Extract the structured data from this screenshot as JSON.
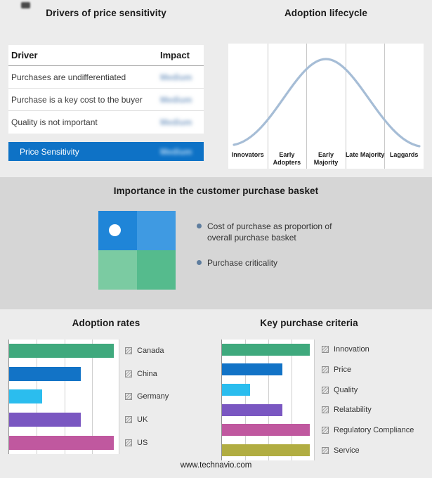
{
  "meta": {
    "footer": "www.technavio.com"
  },
  "drivers": {
    "title": "Drivers of price sensitivity",
    "col_driver": "Driver",
    "col_impact": "Impact",
    "rows": [
      {
        "driver": "Purchases are undifferentiated",
        "impact": "Medium"
      },
      {
        "driver": "Purchase is a key cost to the buyer",
        "impact": "Medium"
      },
      {
        "driver": "Quality is not important",
        "impact": "Medium"
      }
    ],
    "highlight": {
      "label": "Price Sensitivity",
      "impact": "Medium"
    },
    "highlight_color": "#0e72c6"
  },
  "basket": {
    "title": "Importance in the customer purchase basket",
    "bullets": [
      "Cost of purchase as proportion of overall purchase basket",
      "Purchase criticality"
    ],
    "quad_colors": {
      "top_left": "#1f85d8",
      "top_right": "#3f9ae2",
      "bottom_left": "#7bcba2",
      "bottom_right": "#55bb8d"
    }
  },
  "chart_data": [
    {
      "id": "adoption_lifecycle",
      "type": "line",
      "title": "Adoption lifecycle",
      "shape": "bell-curve",
      "categories": [
        "Innovators",
        "Early Adopters",
        "Early Majority",
        "Late Majority",
        "Laggards"
      ],
      "curve_color": "#a6bdd6",
      "grid": "vertical-separators"
    },
    {
      "id": "adoption_rates",
      "type": "bar",
      "orientation": "horizontal",
      "title": "Adoption rates",
      "categories": [
        "Canada",
        "China",
        "Germany",
        "UK",
        "US"
      ],
      "values": [
        95,
        65,
        30,
        65,
        95
      ],
      "xmax": 100,
      "colors": [
        "#3fa97d",
        "#1273c6",
        "#2bbdee",
        "#7a57c1",
        "#c0589f"
      ],
      "legend_position": "right",
      "grid": "vertical"
    },
    {
      "id": "key_purchase_criteria",
      "type": "bar",
      "orientation": "horizontal",
      "title": "Key purchase criteria",
      "categories": [
        "Innovation",
        "Price",
        "Quality",
        "Relatability",
        "Regulatory Compliance",
        "Service"
      ],
      "values": [
        95,
        65,
        30,
        65,
        95,
        95
      ],
      "xmax": 100,
      "colors": [
        "#3fa97d",
        "#1273c6",
        "#2bbdee",
        "#7a57c1",
        "#c0589f",
        "#b1ad42"
      ],
      "legend_position": "right",
      "grid": "vertical"
    }
  ]
}
